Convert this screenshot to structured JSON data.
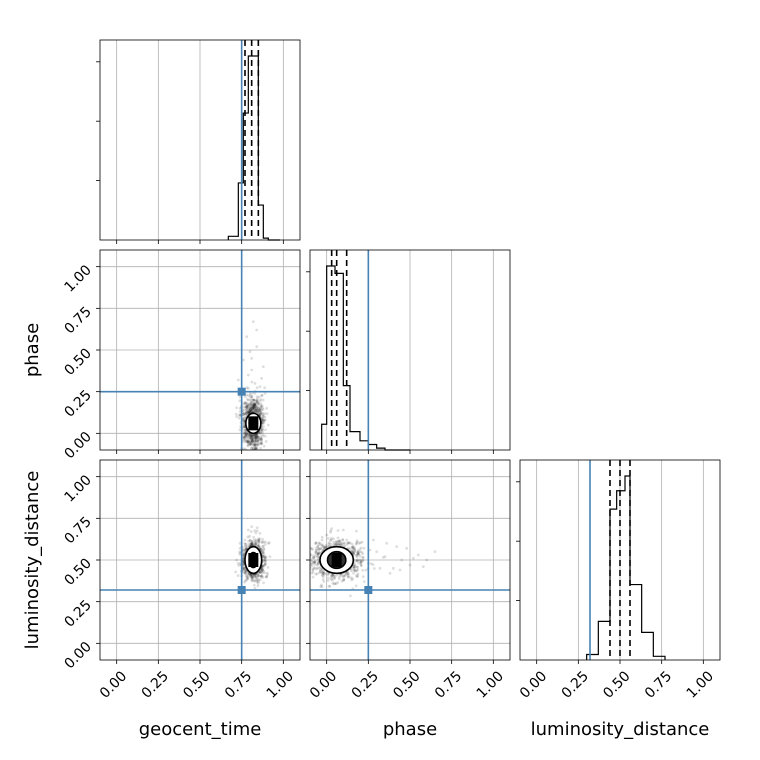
{
  "chart_data": {
    "type": "corner",
    "parameters": [
      "geocent_time",
      "phase",
      "luminosity_distance"
    ],
    "axis_labels": [
      "geocent_time",
      "phase",
      "luminosity_distance"
    ],
    "ticks": [
      0.0,
      0.25,
      0.5,
      0.75,
      1.0
    ],
    "tick_labels": [
      "0.00",
      "0.25",
      "0.50",
      "0.75",
      "1.00"
    ],
    "xlim": [
      -0.1,
      1.1
    ],
    "ylim": [
      -0.1,
      1.1
    ],
    "grid": true,
    "colors": {
      "truth": "#4682b4",
      "hist": "#000000",
      "points": "#000000"
    },
    "truths": {
      "geocent_time": 0.75,
      "phase": 0.25,
      "luminosity_distance": 0.32
    },
    "quantiles": {
      "geocent_time": [
        0.77,
        0.81,
        0.85
      ],
      "phase": [
        0.03,
        0.06,
        0.12
      ],
      "luminosity_distance": [
        0.44,
        0.5,
        0.56
      ]
    },
    "histograms": {
      "geocent_time": {
        "bin_edges": [
          0.67,
          0.73,
          0.76,
          0.79,
          0.82,
          0.85,
          0.88,
          0.91,
          0.98
        ],
        "counts": [
          0.02,
          0.31,
          0.69,
          1.0,
          1.0,
          0.19,
          0.01,
          0.0
        ]
      },
      "phase": {
        "bin_edges": [
          -0.03,
          0.0,
          0.05,
          0.1,
          0.14,
          0.2,
          0.25,
          0.3,
          0.35,
          0.5
        ],
        "counts": [
          0.14,
          1.0,
          0.96,
          0.35,
          0.1,
          0.05,
          0.03,
          0.01,
          0.0
        ]
      },
      "luminosity_distance": {
        "bin_edges": [
          0.3,
          0.37,
          0.44,
          0.48,
          0.53,
          0.56,
          0.63,
          0.7,
          0.77
        ],
        "counts": [
          0.03,
          0.21,
          0.82,
          0.92,
          1.0,
          0.41,
          0.15,
          0.02
        ]
      }
    },
    "panels_2d": [
      {
        "x": "geocent_time",
        "y": "phase",
        "center": [
          0.82,
          0.06
        ],
        "spread": [
          0.03,
          0.07
        ],
        "contours": [
          [
            0.045,
            0.06
          ],
          [
            0.025,
            0.035
          ]
        ],
        "points": [
          [
            0.77,
            0.12
          ],
          [
            0.8,
            0.2
          ],
          [
            0.83,
            0.3
          ],
          [
            0.79,
            0.35
          ],
          [
            0.86,
            0.28
          ],
          [
            0.81,
            0.45
          ],
          [
            0.84,
            0.52
          ],
          [
            0.78,
            0.58
          ],
          [
            0.82,
            0.67
          ],
          [
            0.88,
            0.4
          ],
          [
            0.74,
            0.22
          ],
          [
            0.9,
            0.15
          ],
          [
            0.85,
            0.18
          ],
          [
            0.79,
            0.27
          ],
          [
            0.72,
            0.1
          ],
          [
            0.91,
            0.05
          ],
          [
            0.83,
            0.24
          ],
          [
            0.81,
            0.38
          ],
          [
            0.76,
            0.44
          ],
          [
            0.87,
            0.33
          ],
          [
            0.8,
            0.49
          ],
          [
            0.84,
            0.62
          ],
          [
            0.78,
            0.16
          ],
          [
            0.82,
            0.1
          ],
          [
            0.86,
            0.08
          ],
          [
            0.77,
            0.04
          ],
          [
            0.8,
            0.0
          ],
          [
            0.85,
            -0.02
          ],
          [
            0.73,
            0.32
          ],
          [
            0.89,
            0.24
          ]
        ]
      },
      {
        "x": "geocent_time",
        "y": "luminosity_distance",
        "center": [
          0.82,
          0.5
        ],
        "spread": [
          0.03,
          0.05
        ],
        "contours": [
          [
            0.05,
            0.08
          ],
          [
            0.025,
            0.045
          ]
        ],
        "points": [
          [
            0.74,
            0.6
          ],
          [
            0.9,
            0.4
          ],
          [
            0.78,
            0.38
          ],
          [
            0.86,
            0.66
          ],
          [
            0.81,
            0.7
          ],
          [
            0.83,
            0.33
          ],
          [
            0.72,
            0.5
          ],
          [
            0.92,
            0.52
          ],
          [
            0.76,
            0.45
          ],
          [
            0.88,
            0.58
          ],
          [
            0.8,
            0.62
          ],
          [
            0.84,
            0.42
          ],
          [
            0.75,
            0.55
          ],
          [
            0.89,
            0.47
          ],
          [
            0.79,
            0.68
          ],
          [
            0.85,
            0.36
          ],
          [
            0.77,
            0.62
          ],
          [
            0.87,
            0.44
          ],
          [
            0.82,
            0.57
          ],
          [
            0.8,
            0.43
          ],
          [
            0.73,
            0.48
          ],
          [
            0.91,
            0.6
          ],
          [
            0.78,
            0.52
          ],
          [
            0.86,
            0.5
          ]
        ]
      },
      {
        "x": "phase",
        "y": "luminosity_distance",
        "center": [
          0.06,
          0.5
        ],
        "spread": [
          0.07,
          0.05
        ],
        "contours": [
          [
            0.1,
            0.08
          ],
          [
            0.055,
            0.05
          ]
        ],
        "points": [
          [
            0.2,
            0.5
          ],
          [
            0.25,
            0.48
          ],
          [
            0.3,
            0.55
          ],
          [
            0.35,
            0.52
          ],
          [
            0.4,
            0.45
          ],
          [
            0.45,
            0.5
          ],
          [
            0.5,
            0.47
          ],
          [
            0.55,
            0.53
          ],
          [
            0.6,
            0.5
          ],
          [
            0.65,
            0.55
          ],
          [
            0.42,
            0.58
          ],
          [
            0.38,
            0.42
          ],
          [
            0.28,
            0.62
          ],
          [
            0.22,
            0.4
          ],
          [
            0.32,
            0.45
          ],
          [
            0.48,
            0.57
          ],
          [
            0.18,
            0.6
          ],
          [
            0.15,
            0.38
          ],
          [
            0.0,
            0.65
          ],
          [
            0.1,
            0.68
          ],
          [
            -0.02,
            0.4
          ],
          [
            0.05,
            0.36
          ],
          [
            0.12,
            0.62
          ],
          [
            0.26,
            0.56
          ],
          [
            0.36,
            0.6
          ],
          [
            0.44,
            0.44
          ],
          [
            0.52,
            0.51
          ],
          [
            0.58,
            0.46
          ],
          [
            0.08,
            0.52
          ],
          [
            0.03,
            0.46
          ]
        ]
      }
    ]
  }
}
